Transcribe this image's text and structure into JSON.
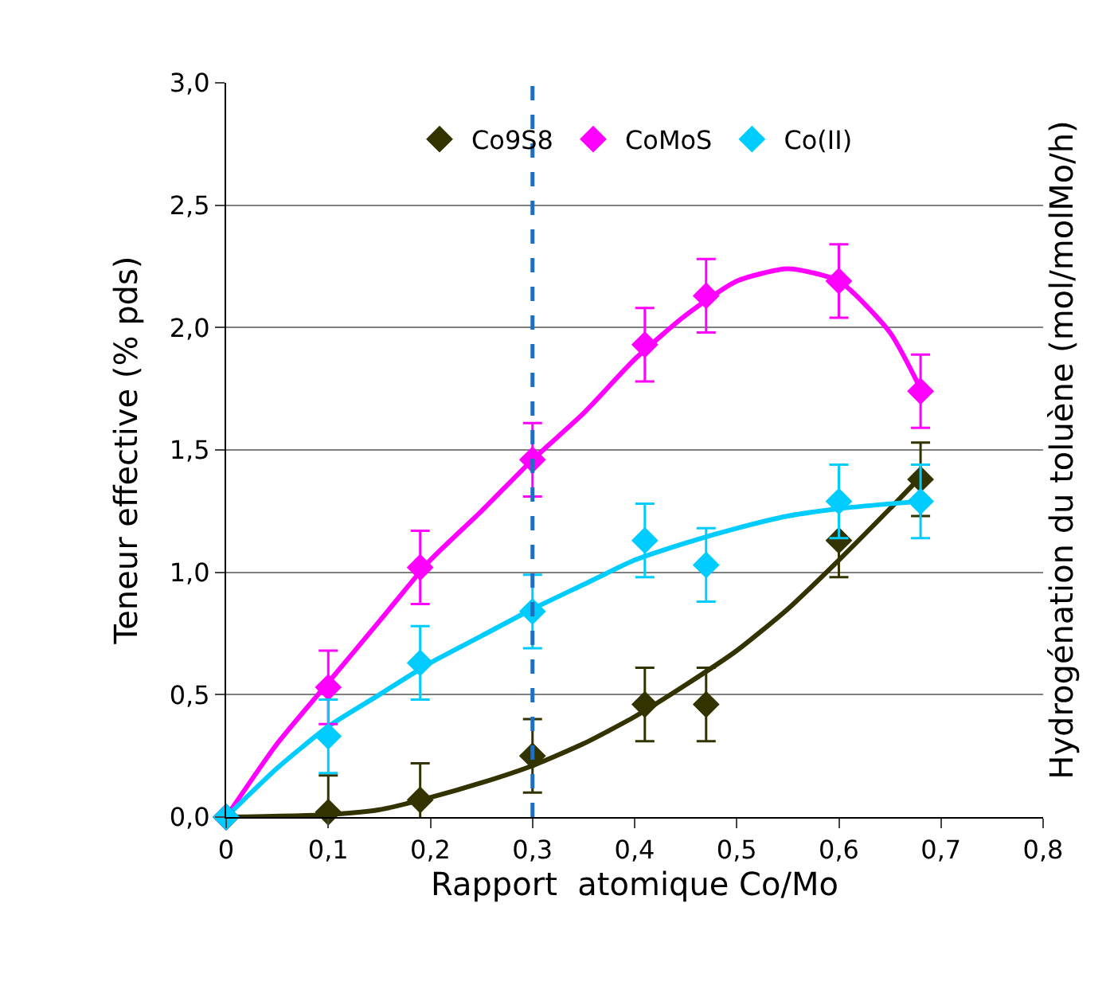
{
  "chart_data": {
    "type": "scatter",
    "xlabel": "Rapport  atomique Co/Mo",
    "ylabel": "Teneur effective (% pds)",
    "y2label": "Hydrogénation du toluène (mol/molMo/h)",
    "xlim": [
      0,
      0.8
    ],
    "xticks": [
      0,
      {
        "value": 0.1,
        "label": "0,1"
      },
      {
        "value": 0.2,
        "label": "0,2"
      },
      {
        "value": 0.3,
        "label": "0,3"
      },
      {
        "value": 0.4,
        "label": "0,4"
      },
      {
        "value": 0.5,
        "label": "0,5"
      },
      {
        "value": 0.6,
        "label": "0,6"
      },
      {
        "value": 0.7,
        "label": "0,7"
      },
      {
        "value": 0.8,
        "label": "0,8"
      }
    ],
    "ylim": [
      0,
      3
    ],
    "yticks": [
      {
        "value": 0,
        "label": "0,0"
      },
      {
        "value": 0.5,
        "label": "0,5"
      },
      {
        "value": 1,
        "label": "1,0"
      },
      {
        "value": 1.5,
        "label": "1,5"
      },
      {
        "value": 2,
        "label": "2,0"
      },
      {
        "value": 2.5,
        "label": "2,5"
      },
      {
        "value": 3,
        "label": "3,0"
      }
    ],
    "grid": "y",
    "legend": "top",
    "ref_lines": [
      {
        "axis": "x",
        "value": 0.3,
        "color": "#1e6fc0",
        "line_style": "dashed"
      }
    ],
    "series": [
      {
        "name": "Co9S8",
        "marker": "diamond",
        "color": "#333300",
        "x": [
          0,
          0.1,
          0.19,
          0.3,
          0.41,
          0.47,
          0.6,
          0.68
        ],
        "values": [
          0,
          0.02,
          0.07,
          0.25,
          0.46,
          0.46,
          1.13,
          1.38
        ],
        "errors": [
          null,
          0.15,
          0.15,
          0.15,
          0.15,
          0.15,
          0.15,
          0.15
        ]
      },
      {
        "name": "CoMoS",
        "marker": "diamond",
        "color": "#ff00ff",
        "x": [
          0,
          0.1,
          0.19,
          0.3,
          0.41,
          0.47,
          0.6,
          0.68
        ],
        "values": [
          0,
          0.53,
          1.02,
          1.46,
          1.93,
          2.13,
          2.19,
          1.74
        ],
        "errors": [
          null,
          0.15,
          0.15,
          0.15,
          0.15,
          0.15,
          0.15,
          0.15
        ]
      },
      {
        "name": "Co(II)",
        "marker": "diamond",
        "color": "#00ccff",
        "x": [
          0,
          0.1,
          0.19,
          0.3,
          0.41,
          0.47,
          0.6,
          0.68
        ],
        "values": [
          0,
          0.33,
          0.63,
          0.84,
          1.13,
          1.03,
          1.29,
          1.29
        ],
        "errors": [
          null,
          0.15,
          0.15,
          0.15,
          0.15,
          0.15,
          0.15,
          0.15
        ]
      },
      {
        "type": "line",
        "marker": "none",
        "color": "#333300",
        "x": [
          0,
          0.1,
          0.15,
          0.2,
          0.25,
          0.3,
          0.35,
          0.4,
          0.45,
          0.5,
          0.55,
          0.6,
          0.65,
          0.68
        ],
        "values": [
          0,
          0.01,
          0.03,
          0.08,
          0.14,
          0.21,
          0.3,
          0.41,
          0.54,
          0.68,
          0.85,
          1.05,
          1.26,
          1.39
        ]
      },
      {
        "type": "line",
        "marker": "none",
        "color": "#ff00ff",
        "x": [
          0,
          0.05,
          0.1,
          0.15,
          0.2,
          0.25,
          0.3,
          0.35,
          0.4,
          0.45,
          0.5,
          0.55,
          0.6,
          0.65,
          0.68
        ],
        "values": [
          0,
          0.3,
          0.55,
          0.8,
          1.05,
          1.25,
          1.46,
          1.65,
          1.87,
          2.05,
          2.19,
          2.24,
          2.19,
          1.98,
          1.75
        ]
      },
      {
        "type": "line",
        "marker": "none",
        "color": "#00ccff",
        "x": [
          0,
          0.05,
          0.1,
          0.15,
          0.2,
          0.25,
          0.3,
          0.35,
          0.4,
          0.45,
          0.5,
          0.55,
          0.6,
          0.65,
          0.68
        ],
        "values": [
          0,
          0.2,
          0.37,
          0.5,
          0.63,
          0.74,
          0.85,
          0.95,
          1.05,
          1.12,
          1.18,
          1.23,
          1.26,
          1.28,
          1.29
        ]
      }
    ]
  }
}
